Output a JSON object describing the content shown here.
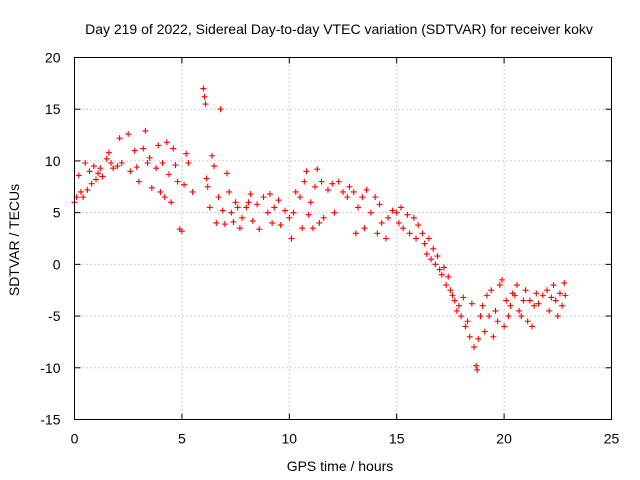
{
  "chart_data": {
    "type": "scatter",
    "title": "Day 219 of 2022, Sidereal Day-to-day VTEC variation (SDTVAR) for receiver kokv",
    "xlabel": "GPS time / hours",
    "ylabel": "SDTVAR / TECUs",
    "xlim": [
      0,
      25
    ],
    "ylim": [
      -15,
      20
    ],
    "x_ticks": [
      0,
      5,
      10,
      15,
      20,
      25
    ],
    "x_tick_labels": [
      "0",
      "5",
      "10",
      "15",
      "20",
      "25"
    ],
    "y_ticks": [
      -15,
      -10,
      -5,
      0,
      5,
      10,
      15,
      20
    ],
    "y_tick_labels": [
      "-15",
      "-10",
      "-5",
      "0",
      "5",
      "10",
      "15",
      "20"
    ],
    "grid": true,
    "marker": "plus",
    "color": "#ff0000",
    "series": [
      {
        "name": "sdtvar",
        "points": [
          [
            0.0,
            6.0
          ],
          [
            0.1,
            6.5
          ],
          [
            0.2,
            8.6
          ],
          [
            0.3,
            7.0
          ],
          [
            0.4,
            6.5
          ],
          [
            0.5,
            9.8
          ],
          [
            0.6,
            7.2
          ],
          [
            0.7,
            9.0
          ],
          [
            0.8,
            7.8
          ],
          [
            0.9,
            9.5
          ],
          [
            1.0,
            8.2
          ],
          [
            1.1,
            8.8
          ],
          [
            1.2,
            9.3
          ],
          [
            1.3,
            8.5
          ],
          [
            1.5,
            10.2
          ],
          [
            1.6,
            10.8
          ],
          [
            1.7,
            9.8
          ],
          [
            1.8,
            9.3
          ],
          [
            2.0,
            9.5
          ],
          [
            2.1,
            12.2
          ],
          [
            2.2,
            9.8
          ],
          [
            2.5,
            12.6
          ],
          [
            2.6,
            9.0
          ],
          [
            2.8,
            11.0
          ],
          [
            2.9,
            9.4
          ],
          [
            3.0,
            8.0
          ],
          [
            3.2,
            11.2
          ],
          [
            3.3,
            12.9
          ],
          [
            3.4,
            9.8
          ],
          [
            3.5,
            10.3
          ],
          [
            3.6,
            7.4
          ],
          [
            3.8,
            9.3
          ],
          [
            3.9,
            11.5
          ],
          [
            4.0,
            7.0
          ],
          [
            4.1,
            9.8
          ],
          [
            4.2,
            6.5
          ],
          [
            4.3,
            11.8
          ],
          [
            4.4,
            8.7
          ],
          [
            4.5,
            6.0
          ],
          [
            4.6,
            11.2
          ],
          [
            4.7,
            9.6
          ],
          [
            4.8,
            8.0
          ],
          [
            4.9,
            3.4
          ],
          [
            5.0,
            3.2
          ],
          [
            5.1,
            7.7
          ],
          [
            5.2,
            10.7
          ],
          [
            5.3,
            9.8
          ],
          [
            5.5,
            7.0
          ],
          [
            6.0,
            17.0
          ],
          [
            6.05,
            16.2
          ],
          [
            6.1,
            15.5
          ],
          [
            6.15,
            8.3
          ],
          [
            6.2,
            7.5
          ],
          [
            6.3,
            5.5
          ],
          [
            6.4,
            10.5
          ],
          [
            6.5,
            9.5
          ],
          [
            6.6,
            4.0
          ],
          [
            6.7,
            6.5
          ],
          [
            6.8,
            15.0
          ],
          [
            6.9,
            5.2
          ],
          [
            7.0,
            3.9
          ],
          [
            7.1,
            8.8
          ],
          [
            7.2,
            7.0
          ],
          [
            7.3,
            5.0
          ],
          [
            7.4,
            4.1
          ],
          [
            7.5,
            6.0
          ],
          [
            7.6,
            5.5
          ],
          [
            7.7,
            3.5
          ],
          [
            7.8,
            4.5
          ],
          [
            8.0,
            5.5
          ],
          [
            8.1,
            6.0
          ],
          [
            8.2,
            6.8
          ],
          [
            8.3,
            4.2
          ],
          [
            8.5,
            5.8
          ],
          [
            8.6,
            3.4
          ],
          [
            8.8,
            6.5
          ],
          [
            9.0,
            5.0
          ],
          [
            9.1,
            6.8
          ],
          [
            9.2,
            4.0
          ],
          [
            9.3,
            5.5
          ],
          [
            9.5,
            6.2
          ],
          [
            9.6,
            3.8
          ],
          [
            9.8,
            5.2
          ],
          [
            10.0,
            4.5
          ],
          [
            10.1,
            2.5
          ],
          [
            10.2,
            5.0
          ],
          [
            10.3,
            7.0
          ],
          [
            10.5,
            6.5
          ],
          [
            10.6,
            3.5
          ],
          [
            10.7,
            8.0
          ],
          [
            10.8,
            9.0
          ],
          [
            10.9,
            4.8
          ],
          [
            11.0,
            6.0
          ],
          [
            11.1,
            3.5
          ],
          [
            11.2,
            7.5
          ],
          [
            11.3,
            9.2
          ],
          [
            11.4,
            4.0
          ],
          [
            11.5,
            8.0
          ],
          [
            11.6,
            4.5
          ],
          [
            11.8,
            7.2
          ],
          [
            12.0,
            7.8
          ],
          [
            12.1,
            5.0
          ],
          [
            12.3,
            8.0
          ],
          [
            12.5,
            7.0
          ],
          [
            12.7,
            6.5
          ],
          [
            12.8,
            7.5
          ],
          [
            13.0,
            7.0
          ],
          [
            13.1,
            3.0
          ],
          [
            13.2,
            5.5
          ],
          [
            13.4,
            6.5
          ],
          [
            13.5,
            3.5
          ],
          [
            13.6,
            7.2
          ],
          [
            13.8,
            5.0
          ],
          [
            14.0,
            6.5
          ],
          [
            14.1,
            3.0
          ],
          [
            14.2,
            5.8
          ],
          [
            14.3,
            4.0
          ],
          [
            14.5,
            2.5
          ],
          [
            14.6,
            4.5
          ],
          [
            14.8,
            5.2
          ],
          [
            15.0,
            5.0
          ],
          [
            15.1,
            4.0
          ],
          [
            15.2,
            5.5
          ],
          [
            15.3,
            3.5
          ],
          [
            15.5,
            4.8
          ],
          [
            15.6,
            3.0
          ],
          [
            15.8,
            4.5
          ],
          [
            15.9,
            2.5
          ],
          [
            16.0,
            3.8
          ],
          [
            16.2,
            3.0
          ],
          [
            16.3,
            2.0
          ],
          [
            16.4,
            1.0
          ],
          [
            16.5,
            2.5
          ],
          [
            16.6,
            0.5
          ],
          [
            16.7,
            1.5
          ],
          [
            16.8,
            0.0
          ],
          [
            16.9,
            0.8
          ],
          [
            17.0,
            -0.5
          ],
          [
            17.1,
            -1.0
          ],
          [
            17.2,
            -0.3
          ],
          [
            17.3,
            -2.0
          ],
          [
            17.4,
            -1.2
          ],
          [
            17.5,
            -2.5
          ],
          [
            17.6,
            -3.0
          ],
          [
            17.7,
            -3.5
          ],
          [
            17.8,
            -4.5
          ],
          [
            17.9,
            -4.0
          ],
          [
            18.0,
            -5.0
          ],
          [
            18.1,
            -3.2
          ],
          [
            18.2,
            -6.0
          ],
          [
            18.3,
            -5.5
          ],
          [
            18.4,
            -7.0
          ],
          [
            18.5,
            -3.8
          ],
          [
            18.6,
            -8.0
          ],
          [
            18.7,
            -9.8
          ],
          [
            18.75,
            -10.2
          ],
          [
            18.8,
            -7.2
          ],
          [
            18.9,
            -5.0
          ],
          [
            19.0,
            -4.0
          ],
          [
            19.1,
            -6.5
          ],
          [
            19.2,
            -3.0
          ],
          [
            19.3,
            -5.0
          ],
          [
            19.4,
            -2.5
          ],
          [
            19.5,
            -7.0
          ],
          [
            19.6,
            -4.5
          ],
          [
            19.7,
            -5.5
          ],
          [
            19.8,
            -2.0
          ],
          [
            19.9,
            -1.5
          ],
          [
            20.0,
            -6.0
          ],
          [
            20.1,
            -3.5
          ],
          [
            20.2,
            -5.0
          ],
          [
            20.3,
            -4.0
          ],
          [
            20.4,
            -2.8
          ],
          [
            20.5,
            -3.0
          ],
          [
            20.6,
            -2.0
          ],
          [
            20.7,
            -4.5
          ],
          [
            20.8,
            -5.0
          ],
          [
            20.9,
            -3.5
          ],
          [
            21.0,
            -2.5
          ],
          [
            21.1,
            -5.5
          ],
          [
            21.2,
            -3.5
          ],
          [
            21.3,
            -6.0
          ],
          [
            21.4,
            -4.0
          ],
          [
            21.5,
            -2.8
          ],
          [
            21.6,
            -3.8
          ],
          [
            21.8,
            -3.0
          ],
          [
            22.0,
            -2.5
          ],
          [
            22.1,
            -4.5
          ],
          [
            22.2,
            -3.2
          ],
          [
            22.3,
            -2.0
          ],
          [
            22.4,
            -3.5
          ],
          [
            22.5,
            -5.0
          ],
          [
            22.6,
            -2.8
          ],
          [
            22.7,
            -4.0
          ],
          [
            22.8,
            -1.8
          ],
          [
            22.85,
            -3.0
          ]
        ]
      }
    ]
  }
}
